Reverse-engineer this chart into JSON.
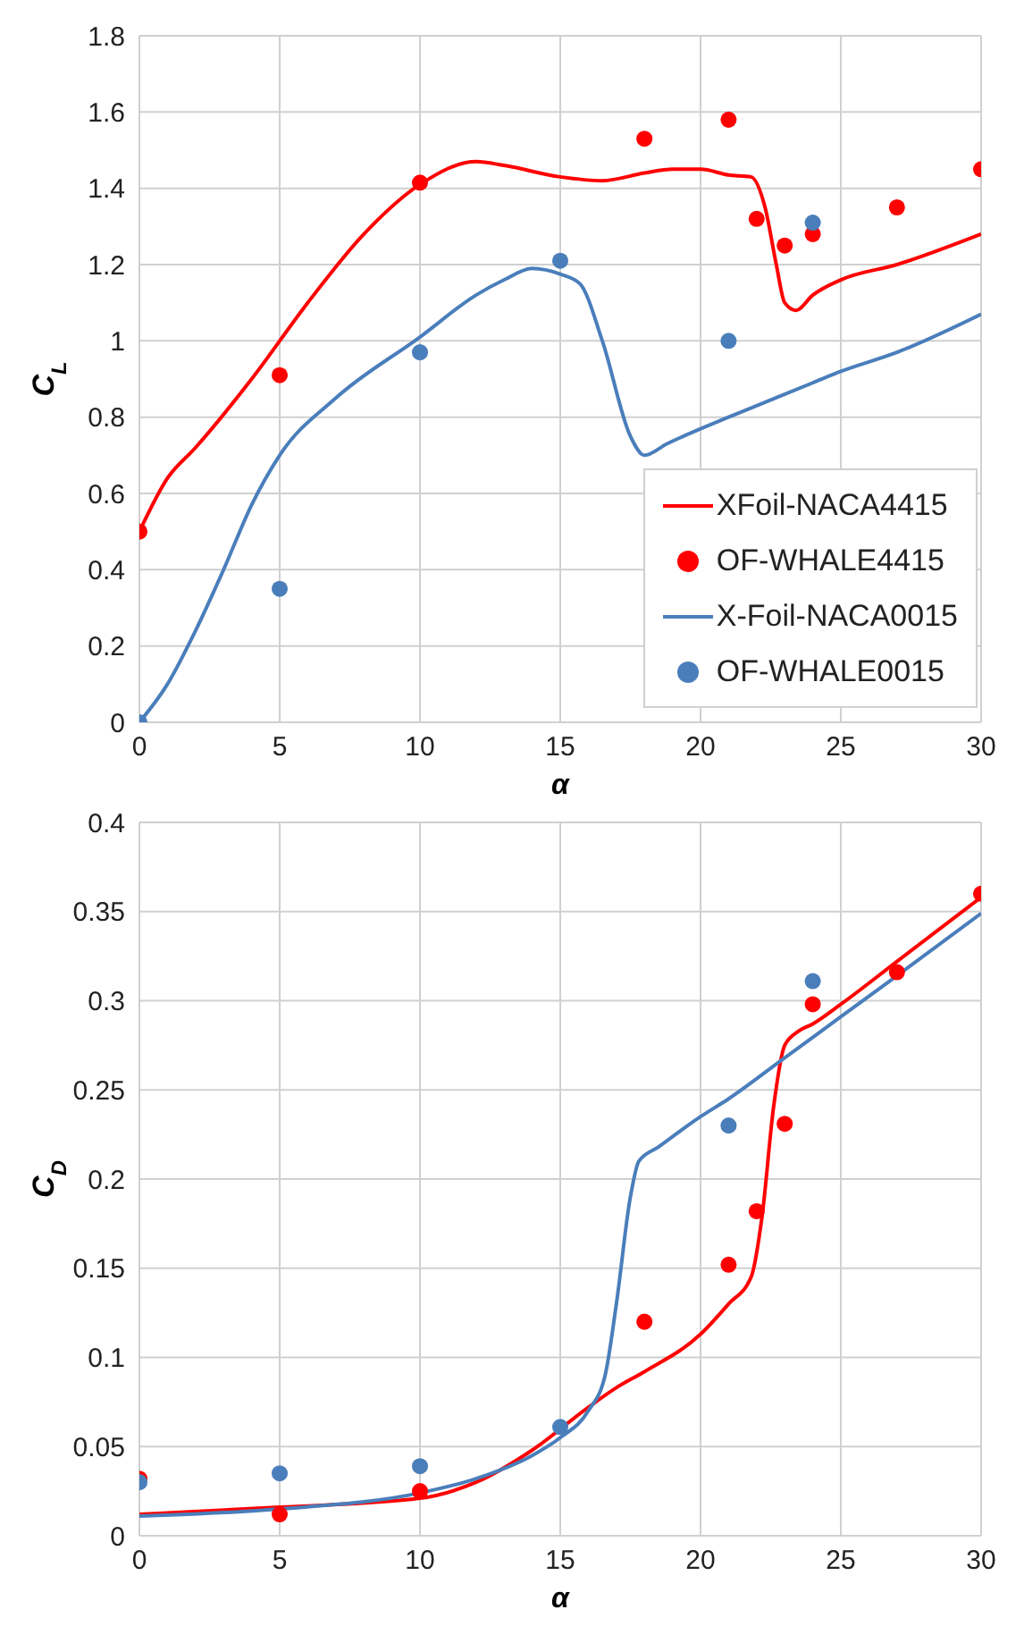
{
  "chart_data": [
    {
      "type": "line",
      "ylabel": "C$_{L}$",
      "xlabel": "α",
      "xlim": [
        0,
        30
      ],
      "xticks": [
        0,
        5,
        10,
        15,
        20,
        25,
        30
      ],
      "ylim": [
        0,
        1.8
      ],
      "yticks": [
        0,
        0.2,
        0.4,
        0.6,
        0.8,
        1,
        1.2,
        1.4,
        1.6,
        1.8
      ],
      "grid": true,
      "legend": "bottom right",
      "series": [
        {
          "name": "XFoil-NACA4415",
          "marker": "none",
          "line_style": "solid",
          "color": "#ff0000",
          "x": [
            0,
            1,
            2,
            4,
            6,
            8,
            10,
            12,
            13,
            15,
            16.5,
            18,
            19,
            20,
            21,
            21.8,
            22.3,
            22.7,
            23,
            23.4,
            24,
            25,
            27,
            30
          ],
          "values": [
            0.5,
            0.64,
            0.72,
            0.9,
            1.1,
            1.28,
            1.41,
            1.47,
            1.46,
            1.43,
            1.42,
            1.44,
            1.45,
            1.45,
            1.435,
            1.43,
            1.35,
            1.2,
            1.1,
            1.08,
            1.12,
            1.16,
            1.2,
            1.28
          ]
        },
        {
          "name": "OF-WHALE4415",
          "type": "scatter",
          "marker": "circle",
          "color": "#ff0000",
          "x": [
            0,
            5,
            10,
            18,
            21,
            22,
            23,
            24,
            27,
            30
          ],
          "values": [
            0.5,
            0.91,
            1.415,
            1.53,
            1.58,
            1.32,
            1.25,
            1.28,
            1.35,
            1.45
          ]
        },
        {
          "name": "X-Foil-NACA0015",
          "marker": "none",
          "line_style": "solid",
          "color": "#4a7ebb",
          "x": [
            0,
            1,
            2,
            3,
            4,
            5,
            7,
            10,
            12,
            13,
            14,
            15,
            15.7,
            16.5,
            17.5,
            18,
            18.8,
            21,
            22,
            24,
            25,
            27,
            30
          ],
          "values": [
            0,
            0.1,
            0.24,
            0.4,
            0.57,
            0.7,
            0.85,
            1.01,
            1.12,
            1.16,
            1.19,
            1.175,
            1.15,
            1,
            0.75,
            0.7,
            0.73,
            0.8,
            0.83,
            0.89,
            0.92,
            0.97,
            1.07
          ]
        },
        {
          "name": "OF-WHALE0015",
          "type": "scatter",
          "marker": "circle",
          "color": "#4a7ebb",
          "x": [
            0,
            5,
            10,
            15,
            21,
            24
          ],
          "values": [
            0,
            0.35,
            0.97,
            1.21,
            1,
            1.31
          ]
        }
      ]
    },
    {
      "type": "line",
      "ylabel": "C$_{D}$",
      "xlabel": "α",
      "xlim": [
        0,
        30
      ],
      "xticks": [
        0,
        5,
        10,
        15,
        20,
        25,
        30
      ],
      "ylim": [
        0,
        0.4
      ],
      "yticks": [
        0,
        0.05,
        0.1,
        0.15,
        0.2,
        0.25,
        0.3,
        0.35,
        0.4
      ],
      "grid": true,
      "series": [
        {
          "marker": "none",
          "line_style": "solid",
          "color": "#ff0000",
          "x": [
            0,
            5,
            10,
            12,
            14,
            16,
            17,
            18,
            20,
            21,
            21.8,
            22.2,
            22.6,
            23,
            23.5,
            24,
            25,
            27,
            30
          ],
          "values": [
            0.012,
            0.016,
            0.021,
            0.03,
            0.048,
            0.072,
            0.083,
            0.092,
            0.113,
            0.13,
            0.145,
            0.18,
            0.24,
            0.275,
            0.283,
            0.287,
            0.298,
            0.322,
            0.358
          ]
        },
        {
          "type": "scatter",
          "marker": "circle",
          "color": "#ff0000",
          "x": [
            0,
            5,
            10,
            18,
            21,
            22,
            23,
            24,
            27,
            30
          ],
          "values": [
            0.032,
            0.012,
            0.025,
            0.12,
            0.152,
            0.182,
            0.231,
            0.298,
            0.316,
            0.36
          ]
        },
        {
          "marker": "none",
          "line_style": "solid",
          "color": "#4a7ebb",
          "x": [
            0,
            5,
            10,
            12,
            14,
            15,
            16,
            16.6,
            17,
            17.5,
            17.8,
            18.5,
            20,
            21,
            23,
            25,
            27,
            30
          ],
          "values": [
            0.011,
            0.015,
            0.024,
            0.032,
            0.045,
            0.055,
            0.07,
            0.09,
            0.13,
            0.19,
            0.21,
            0.218,
            0.235,
            0.245,
            0.268,
            0.291,
            0.314,
            0.349
          ]
        },
        {
          "type": "scatter",
          "marker": "circle",
          "color": "#4a7ebb",
          "x": [
            0,
            5,
            10,
            15,
            21,
            24
          ],
          "values": [
            0.03,
            0.035,
            0.039,
            0.061,
            0.23,
            0.311
          ]
        }
      ]
    }
  ]
}
